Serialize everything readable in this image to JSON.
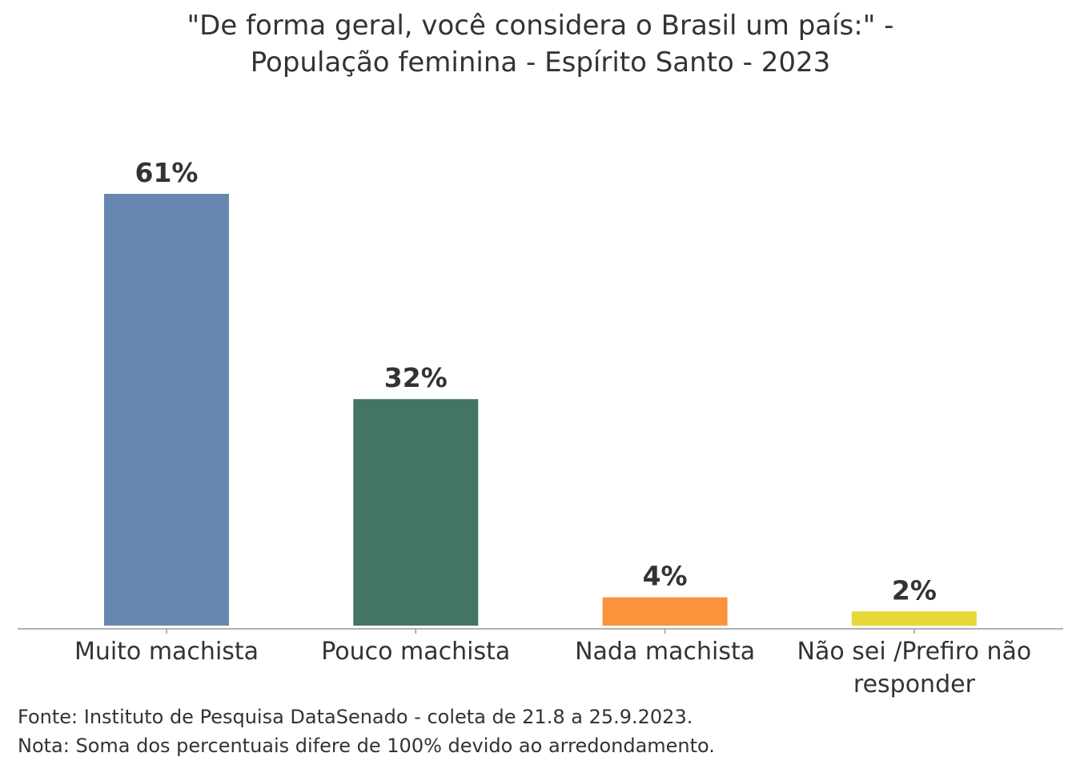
{
  "chart_data": {
    "type": "bar",
    "title": [
      "\"De forma geral, você considera o Brasil um país:\" -",
      "População feminina - Espírito Santo - 2023"
    ],
    "categories": [
      [
        "Muito machista"
      ],
      [
        "Pouco machista"
      ],
      [
        "Nada machista"
      ],
      [
        "Não sei /Prefiro não",
        "responder"
      ]
    ],
    "values": [
      61,
      32,
      4,
      2
    ],
    "value_labels": [
      "61%",
      "32%",
      "4%",
      "2%"
    ],
    "colors": [
      "#6688B0",
      "#447563",
      "#FB923C",
      "#E6D835"
    ],
    "xlabel": "",
    "ylabel": "",
    "ylim": [
      0,
      61
    ],
    "grid": false,
    "notes": [
      "Fonte: Instituto de Pesquisa DataSenado - coleta de 21.8 a 25.9.2023.",
      "Nota: Soma dos percentuais difere de 100% devido ao arredondamento."
    ]
  }
}
